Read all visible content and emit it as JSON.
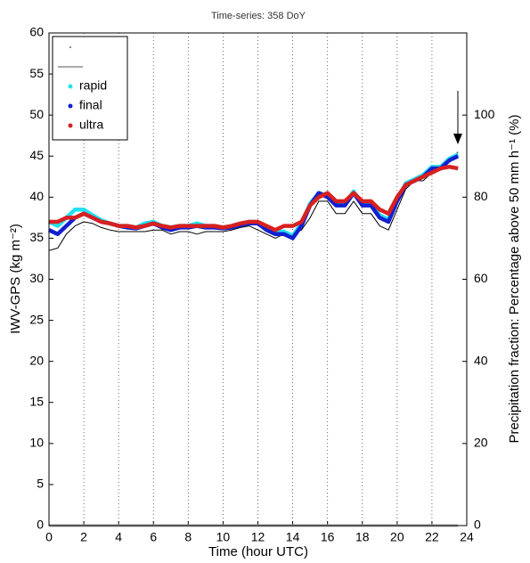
{
  "chart_data": {
    "type": "line",
    "title": "Time-series: 358 DoY",
    "xlabel": "Time (hour UTC)",
    "ylabel": "IWV-GPS (kg m⁻²)",
    "y2label": "Precipitation fraction: Percentage above 50 mm h⁻¹ (%)",
    "x": [
      0,
      0.5,
      1,
      1.5,
      2,
      2.5,
      3,
      3.5,
      4,
      4.5,
      5,
      5.5,
      6,
      6.5,
      7,
      7.5,
      8,
      8.5,
      9,
      9.5,
      10,
      10.5,
      11,
      11.5,
      12,
      12.5,
      13,
      13.5,
      14,
      14.5,
      15,
      15.5,
      16,
      16.5,
      17,
      17.5,
      18,
      18.5,
      19,
      19.5,
      20,
      20.5,
      21,
      21.5,
      22,
      22.5,
      23,
      23.5
    ],
    "series": [
      {
        "color": "#000000",
        "style": "line",
        "values": [
          33.5,
          33.8,
          35.5,
          36.5,
          37,
          36.8,
          36.3,
          36,
          35.8,
          35.8,
          35.8,
          35.8,
          36,
          36,
          35.5,
          35.8,
          35.8,
          35.5,
          35.8,
          35.8,
          35.8,
          36,
          36.3,
          36.5,
          36,
          35.5,
          35,
          35.5,
          35.5,
          36,
          37.5,
          39.5,
          39.5,
          38,
          38,
          39.5,
          38,
          38,
          36.5,
          36,
          38.5,
          41,
          42,
          42,
          43,
          43.5,
          44.5,
          45.5
        ]
      },
      {
        "color": "#aaaaaa",
        "style": "line",
        "axis": "y2",
        "values": [
          0,
          0,
          0,
          0,
          0,
          0,
          0,
          0,
          0,
          0,
          0,
          0,
          0,
          0,
          0,
          0,
          0,
          0,
          0,
          0,
          0,
          0,
          0,
          0,
          0,
          0,
          0,
          0,
          0,
          0,
          0,
          0,
          0,
          0,
          0,
          0,
          0,
          0,
          0,
          0,
          0,
          0,
          0,
          0,
          0,
          0,
          0,
          0
        ]
      },
      {
        "name": "rapid",
        "color": "#22e0f0",
        "style": "dots",
        "values": [
          37,
          36.5,
          37.5,
          38.5,
          38.5,
          37.8,
          37.2,
          36.8,
          36.5,
          36.5,
          36.3,
          36.8,
          37,
          36.5,
          36.3,
          36.5,
          36.5,
          36.8,
          36.5,
          36.5,
          36.3,
          36.5,
          36.8,
          37,
          37,
          36.3,
          35.8,
          35.8,
          35.3,
          36.8,
          39.2,
          40.5,
          40.2,
          39.2,
          39.2,
          40.7,
          39.2,
          39.2,
          37.8,
          37.3,
          39.7,
          41.7,
          42.2,
          42.7,
          43.7,
          43.7,
          44.7,
          45.2
        ]
      },
      {
        "name": "final",
        "color": "#1020d0",
        "style": "dots",
        "values": [
          36,
          35.5,
          36.5,
          37.5,
          38,
          37.5,
          37,
          36.8,
          36.5,
          36.3,
          36.2,
          36.5,
          36.8,
          36.3,
          36,
          36.3,
          36.3,
          36.5,
          36.3,
          36.3,
          36.2,
          36.3,
          36.6,
          36.8,
          36.8,
          36,
          35.5,
          35.5,
          35,
          36.5,
          39,
          40.5,
          40,
          39,
          39,
          40.5,
          39,
          39,
          37.5,
          37,
          39.5,
          41.5,
          42,
          42.5,
          43.5,
          43.5,
          44.5,
          45
        ]
      },
      {
        "name": "ultra",
        "color": "#d82020",
        "style": "dots",
        "values": [
          37,
          37,
          37.5,
          37.5,
          38,
          37.5,
          37,
          36.8,
          36.5,
          36.5,
          36.3,
          36.5,
          36.8,
          36.5,
          36.3,
          36.5,
          36.5,
          36.5,
          36.5,
          36.5,
          36.3,
          36.5,
          36.8,
          37,
          37,
          36.5,
          36,
          36.5,
          36.5,
          37,
          39,
          40,
          40.5,
          39.5,
          39.5,
          40.5,
          39.5,
          39.5,
          38.5,
          38,
          40,
          41.5,
          42,
          42.5,
          43,
          43.5,
          43.7,
          43.5
        ]
      }
    ],
    "xlim": [
      0,
      24
    ],
    "xticks": [
      0,
      2,
      4,
      6,
      8,
      10,
      12,
      14,
      16,
      18,
      20,
      22,
      24
    ],
    "ylim": [
      0,
      60
    ],
    "yticks": [
      0,
      5,
      10,
      15,
      20,
      25,
      30,
      35,
      40,
      45,
      50,
      55,
      60
    ],
    "y2lim": [
      0,
      120
    ],
    "y2ticks": [
      0,
      20,
      40,
      60,
      80,
      100
    ],
    "grid": "x",
    "legend": "upper left"
  }
}
